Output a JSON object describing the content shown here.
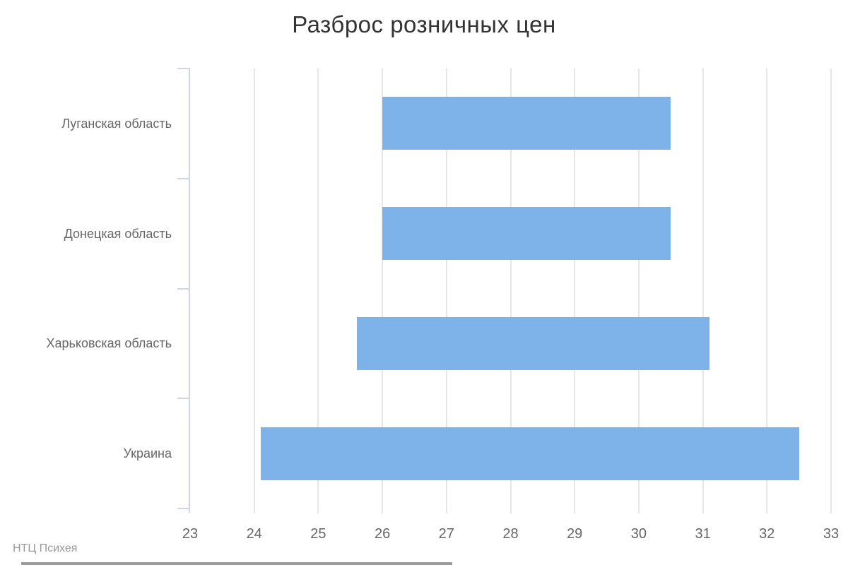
{
  "title": "Разброс розничных цен",
  "credits": "НТЦ Психея",
  "colors": {
    "bar": "#7db3e8",
    "gridline": "#e6e6e6",
    "axis_line": "#ccd6eb",
    "title_text": "#333333",
    "label_text": "#666666",
    "credits_text": "#999999",
    "bottom_strip": "#9c9c9c"
  },
  "chart_data": {
    "type": "bar",
    "orientation": "horizontal",
    "title": "Разброс розничных цен",
    "categories": [
      "Луганская область",
      "Донецкая область",
      "Харьковская область",
      "Украина"
    ],
    "series": [
      {
        "name": "Разброс розничных цен",
        "ranges": [
          {
            "category": "Луганская область",
            "low": 26.0,
            "high": 30.5
          },
          {
            "category": "Донецкая область",
            "low": 26.0,
            "high": 30.5
          },
          {
            "category": "Харьковская область",
            "low": 25.6,
            "high": 31.1
          },
          {
            "category": "Украина",
            "low": 24.1,
            "high": 32.5
          }
        ]
      }
    ],
    "xlim": [
      23,
      33
    ],
    "x_ticks": [
      23,
      24,
      25,
      26,
      27,
      28,
      29,
      30,
      31,
      32,
      33
    ],
    "xlabel": "",
    "ylabel": "",
    "grid": true,
    "legend_visible": false,
    "annotation": "НТЦ Психея"
  }
}
